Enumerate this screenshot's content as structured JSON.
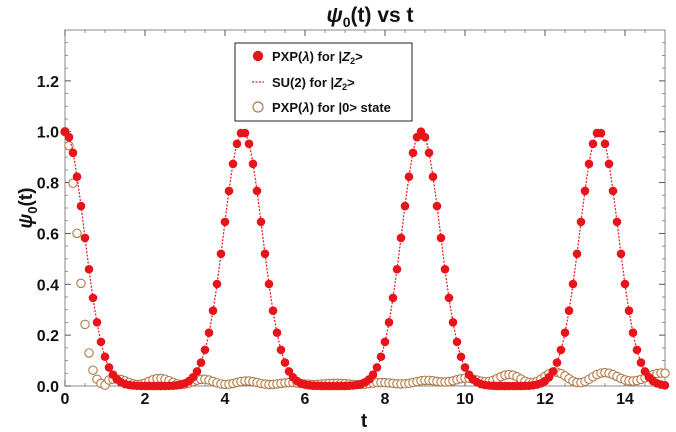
{
  "chart_data": {
    "type": "scatter",
    "title": "ψ0(t) vs t",
    "title_main": "ψ",
    "title_sub": "0",
    "title_rest": "(t) vs t",
    "xlabel": "t",
    "ylabel": "ψ0(t)",
    "ylabel_main": "ψ",
    "ylabel_sub": "0",
    "ylabel_rest": "(t)",
    "xlim": [
      0,
      15
    ],
    "ylim": [
      0,
      1.4
    ],
    "xticks": [
      0,
      2,
      4,
      6,
      8,
      10,
      12,
      14
    ],
    "xtick_labels": [
      "0",
      "2",
      "4",
      "6",
      "8",
      "10",
      "12",
      "14"
    ],
    "yticks": [
      0.0,
      0.2,
      0.4,
      0.6,
      0.8,
      1.0,
      1.2
    ],
    "ytick_labels": [
      "0.0",
      "0.2",
      "0.4",
      "0.6",
      "0.8",
      "1.0",
      "1.2"
    ],
    "grid": false,
    "legend_position": "top-center",
    "revival_period": 4.45,
    "colors": {
      "pxp_z2": "#e8141a",
      "su2_line": "#e8141a",
      "pxp_zero": "#b07a4a"
    },
    "series": [
      {
        "name": "PXP(λ) for |Z2>",
        "legend_main": "PXP(",
        "legend_lambda": "λ",
        "legend_mid": ") for |",
        "legend_italic": "Z",
        "legend_sub": "2",
        "legend_end": ">",
        "marker": "filled-circle",
        "x_start": 0,
        "x_end": 15,
        "x_step": 0.1,
        "form": "revival-peaks",
        "peak_value": 1.0,
        "peak_width": 0.68
      },
      {
        "name": "SU(2) for |Z2>",
        "legend_main": "SU(2) for |",
        "legend_italic": "Z",
        "legend_sub": "2",
        "legend_end": ">",
        "marker": "dashed-line",
        "x_start": 0,
        "x_end": 15,
        "form": "revival-peaks",
        "peak_value": 1.0,
        "peak_width": 0.68
      },
      {
        "name": "PXP(λ) for |0> state",
        "legend_main": "PXP(",
        "legend_lambda": "λ",
        "legend_mid": ") for |0> state",
        "marker": "open-circle",
        "x_start": 0,
        "x_end": 15,
        "x_step": 0.1,
        "form": "initial-decay-then-small-oscillation",
        "initial_value": 1.0,
        "max_late_value": 0.075
      }
    ]
  }
}
